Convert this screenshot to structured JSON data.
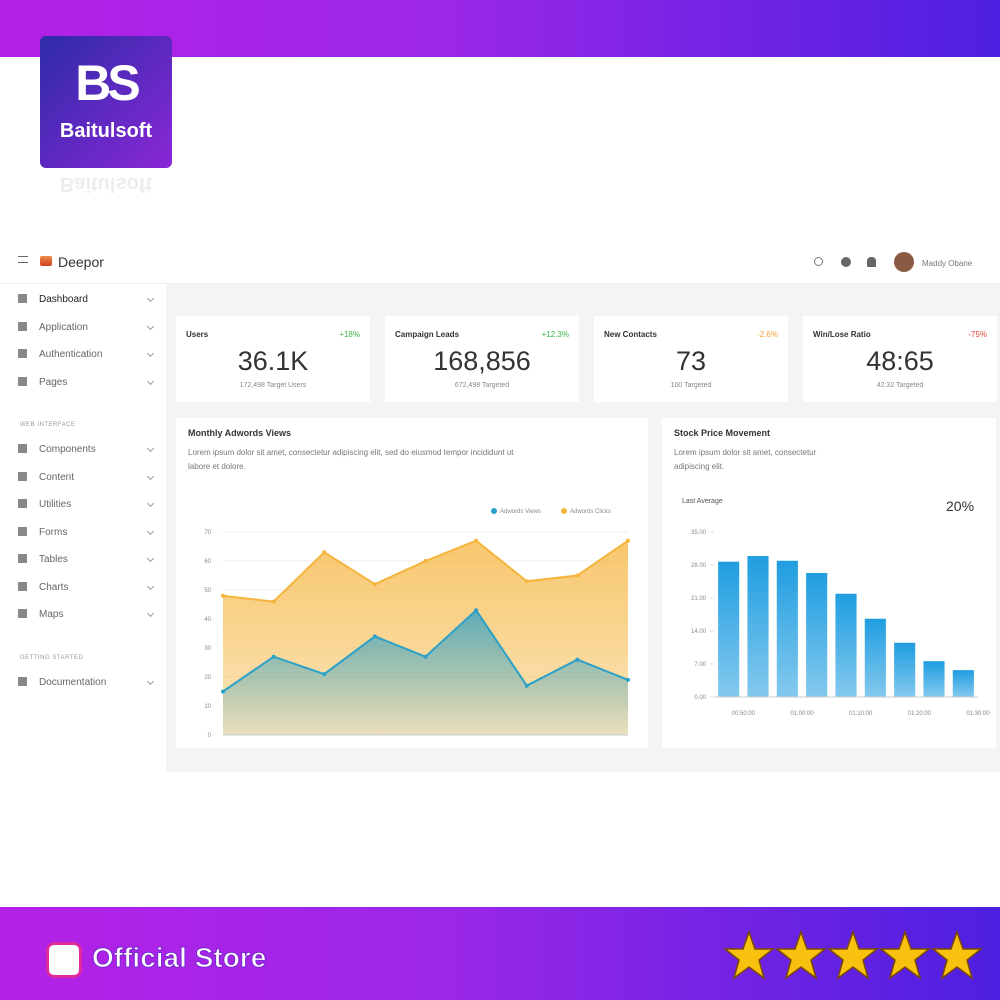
{
  "brand": {
    "logo": "BS",
    "name": "Baitulsoft",
    "store": "Official Store"
  },
  "app": {
    "name": "Deepor",
    "user": "Maddy Obane"
  },
  "sidebar": {
    "items": [
      "Dashboard",
      "Application",
      "Authentication",
      "Pages"
    ],
    "section1": "WEB INTERFACE",
    "items2": [
      "Components",
      "Content",
      "Utilities",
      "Forms",
      "Tables",
      "Charts",
      "Maps"
    ],
    "section2": "GETTING STARTED",
    "items3": [
      "Documentation"
    ]
  },
  "stats": [
    {
      "title": "Users",
      "change": "+18%",
      "value": "36.1K",
      "sub": "172,498 Target Users"
    },
    {
      "title": "Campaign Leads",
      "change": "+12.3%",
      "value": "168,856",
      "sub": "672,498 Targeted"
    },
    {
      "title": "New Contacts",
      "change": "-2.6%",
      "value": "73",
      "sub": "100 Targeted"
    },
    {
      "title": "Win/Lose Ratio",
      "change": "-75%",
      "value": "48:65",
      "sub": "42:32 Targeted"
    }
  ],
  "panels": [
    {
      "title": "Monthly Adwords Views",
      "text": "Lorem ipsum dolor sit amet, consectetur adipiscing elit, sed do eiusmod tempor incididunt ut labore et dolore."
    },
    {
      "title": "Stock Price Movement",
      "text": "Lorem ipsum dolor sit amet, consectetur adipiscing elit.",
      "label": "Last Average",
      "figure": "20%"
    }
  ],
  "chart_data": [
    {
      "type": "area",
      "ylim": [
        0,
        70
      ],
      "yticks": [
        0,
        10,
        20,
        30,
        40,
        50,
        60,
        70
      ],
      "grid": true,
      "legend": "top-right",
      "series": [
        {
          "name": "Adwords Clicks",
          "color": "#f5b43c",
          "values": [
            48,
            46,
            63,
            52,
            60,
            67,
            53,
            55,
            67
          ]
        },
        {
          "name": "Adwords Views",
          "color": "#2ba0c8",
          "values": [
            15,
            27,
            21,
            34,
            27,
            43,
            17,
            26,
            19
          ]
        }
      ]
    },
    {
      "type": "bar",
      "color": "#1f9de0",
      "ylim": [
        0,
        35
      ],
      "yticks": [
        {
          "value": 0,
          "label": "0.00"
        },
        {
          "value": 7,
          "label": "7.00"
        },
        {
          "value": 14,
          "label": "14.00"
        },
        {
          "value": 21,
          "label": "21.00"
        },
        {
          "value": 28,
          "label": "28.00"
        },
        {
          "value": 35,
          "label": "35.00"
        }
      ],
      "categories": [
        "00:50:00",
        null,
        "01:00:00",
        null,
        "01:10:00",
        null,
        "01:20:00",
        null,
        "01:30:00"
      ],
      "values": [
        28.7,
        29.9,
        28.9,
        26.3,
        21.9,
        16.6,
        11.5,
        7.6,
        5.7
      ]
    }
  ]
}
